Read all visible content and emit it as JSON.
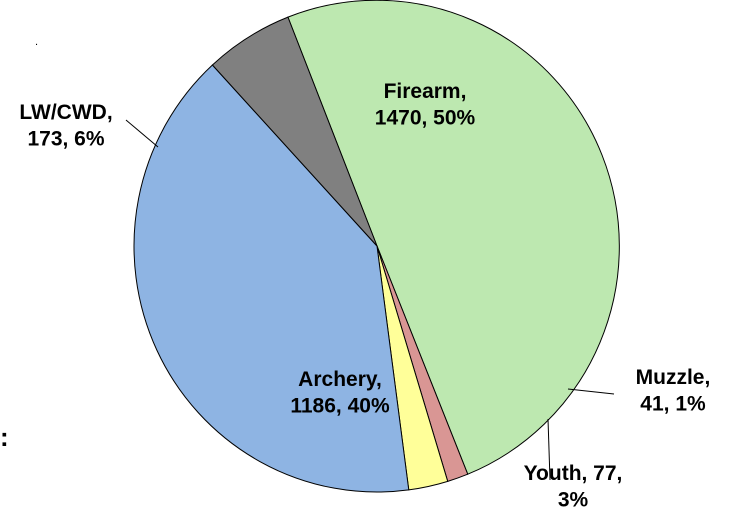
{
  "chart_data": {
    "type": "pie",
    "title": "",
    "slices": [
      {
        "name": "Firearm",
        "value": 1470,
        "percent": "50%",
        "color": "#bde8b0",
        "label_lines": [
          "Firearm,",
          "1470, 50%"
        ]
      },
      {
        "name": "Muzzle",
        "value": 41,
        "percent": "1%",
        "color": "#d99694",
        "label_lines": [
          "Muzzle,",
          "41, 1%"
        ]
      },
      {
        "name": "Youth",
        "value": 77,
        "percent": "3%",
        "color": "#ffff99",
        "label_lines": [
          "Youth, 77,",
          "3%"
        ]
      },
      {
        "name": "Archery",
        "value": 1186,
        "percent": "40%",
        "color": "#8eb4e3",
        "label_lines": [
          "Archery,",
          "1186, 40%"
        ]
      },
      {
        "name": "LW/CWD",
        "value": 173,
        "percent": "6%",
        "color": "#808080",
        "label_lines": [
          "LW/CWD,",
          "173, 6%"
        ]
      }
    ],
    "edge_color": "#000000",
    "legend": "none",
    "label_style": "category, value, percent"
  },
  "stray_text": {
    "left_fragment": ":",
    "dot": "."
  }
}
